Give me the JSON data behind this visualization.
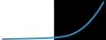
{
  "x": [
    0,
    1,
    2,
    3,
    4,
    5,
    6,
    7,
    8,
    9,
    10,
    11,
    12,
    13,
    14,
    15,
    16,
    17,
    18,
    19,
    20
  ],
  "y": [
    0.2,
    0.22,
    0.24,
    0.26,
    0.28,
    0.3,
    0.33,
    0.36,
    0.4,
    0.45,
    0.52,
    0.62,
    0.75,
    1.0,
    1.4,
    2.0,
    2.8,
    3.8,
    5.1,
    6.6,
    8.5
  ],
  "line_color": "#2196c8",
  "line_width": 1.3,
  "background_color": "#000000",
  "ylim": [
    0,
    9
  ],
  "xlim": [
    -0.5,
    20.5
  ]
}
